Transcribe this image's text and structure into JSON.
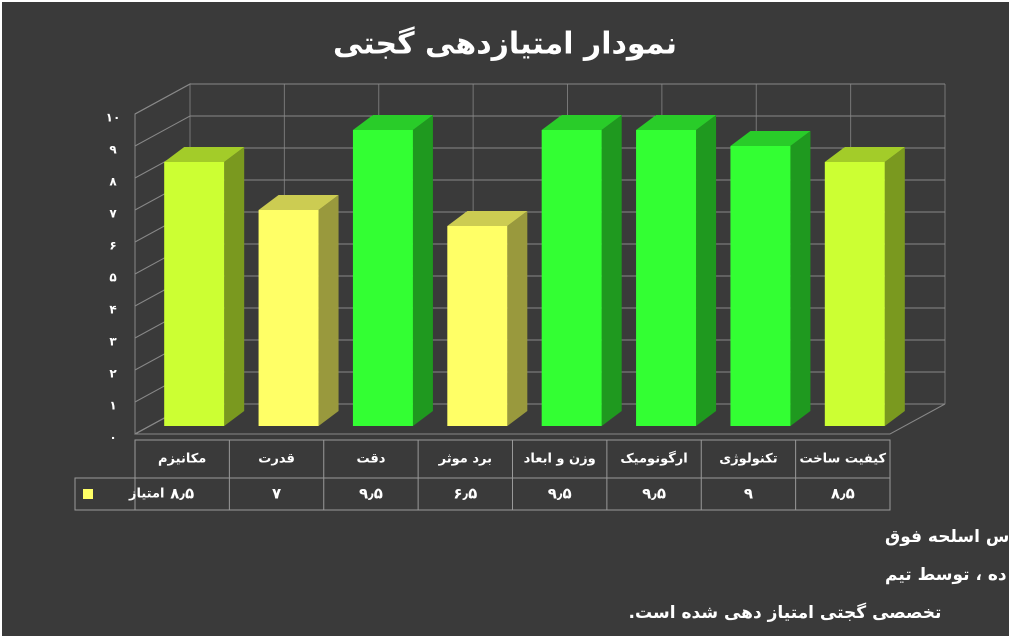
{
  "chart_data": {
    "type": "bar3d",
    "title": "نمودار امتیازدهی گجتی",
    "categories": [
      "مکانیزم",
      "قدرت",
      "دقت",
      "برد موثر",
      "وزن و ابعاد",
      "ارگونومیک",
      "تکنولوژی",
      "کیفیت ساخت"
    ],
    "series": [
      {
        "name": "امتیاز",
        "color": "#ffff66",
        "colors": [
          "#ccff33",
          "#ffff66",
          "#33ff33",
          "#ffff66",
          "#33ff33",
          "#33ff33",
          "#33ff33",
          "#ccff33"
        ],
        "values": [
          8.5,
          7,
          9.5,
          6.5,
          9.5,
          9.5,
          9,
          8.5
        ],
        "value_labels": [
          "۸٫۵",
          "۷",
          "۹٫۵",
          "۶٫۵",
          "۹٫۵",
          "۹٫۵",
          "۹",
          "۸٫۵"
        ]
      }
    ],
    "ylim": [
      0,
      10
    ],
    "yticks": [
      {
        "value": 0,
        "label": "۰"
      },
      {
        "value": 1,
        "label": "۱"
      },
      {
        "value": 2,
        "label": "۲"
      },
      {
        "value": 3,
        "label": "۳"
      },
      {
        "value": 4,
        "label": "۴"
      },
      {
        "value": 5,
        "label": "۵"
      },
      {
        "value": 6,
        "label": "۶"
      },
      {
        "value": 7,
        "label": "۷"
      },
      {
        "value": 8,
        "label": "۸"
      },
      {
        "value": 9,
        "label": "۹"
      },
      {
        "value": 10,
        "label": "۱۰"
      }
    ],
    "grid": true,
    "caption": [
      "نمودار امتیازدهی گجتی برای تفنگ بادی کمتا ۳۰۰ بر اساس هشت فاکتور مندرج بالا با قیاس اسلحه فوق",
      "با تفنگ های هم کلاس (ساختار شلیک یکسان) ارزیابی و در هر بخش بر مبنای شماره ی ده ، توسط تیم",
      "تخصصی گجتی امتیاز دهی شده است."
    ]
  }
}
